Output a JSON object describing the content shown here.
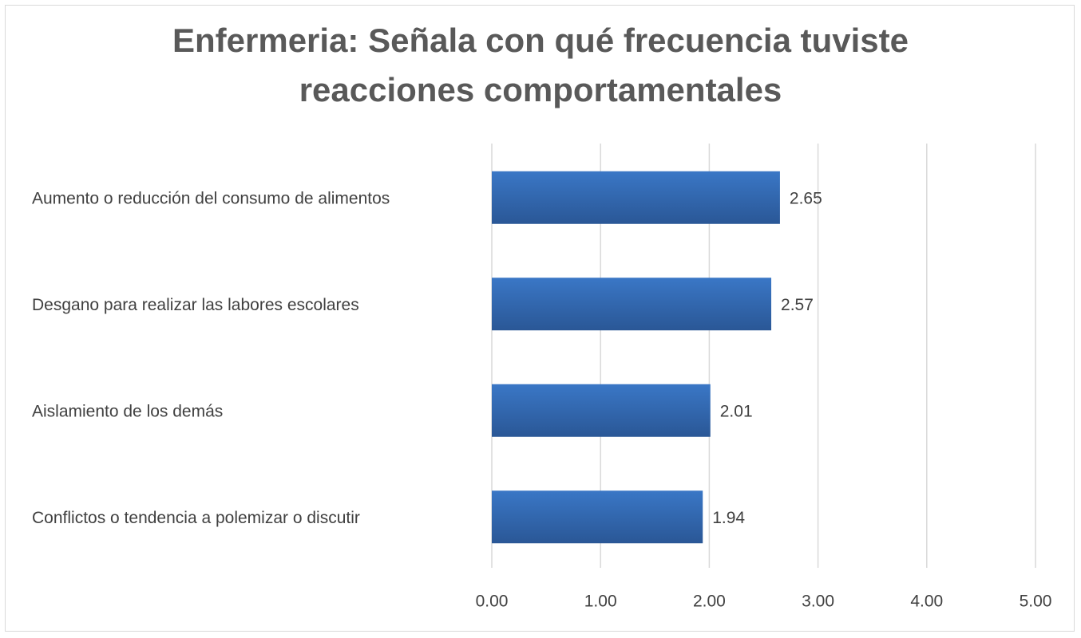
{
  "chart_data": {
    "type": "barh",
    "title": "Enfermeria: Señala con qué frecuencia tuviste reacciones comportamentales",
    "categories": [
      "Aumento o reducción del consumo de alimentos",
      "Desgano para realizar las labores escolares",
      "Aislamiento de los demás",
      "Conflictos o tendencia a polemizar o discutir"
    ],
    "values": [
      2.65,
      2.57,
      2.01,
      1.94
    ],
    "color": "#3a77c6",
    "xlim": [
      0,
      5
    ],
    "xticks": [
      {
        "value": 0,
        "label": "0.00"
      },
      {
        "value": 1,
        "label": "1.00"
      },
      {
        "value": 2,
        "label": "2.00"
      },
      {
        "value": 3,
        "label": "3.00"
      },
      {
        "value": 4,
        "label": "4.00"
      },
      {
        "value": 5,
        "label": "5.00"
      }
    ],
    "grid": true
  }
}
